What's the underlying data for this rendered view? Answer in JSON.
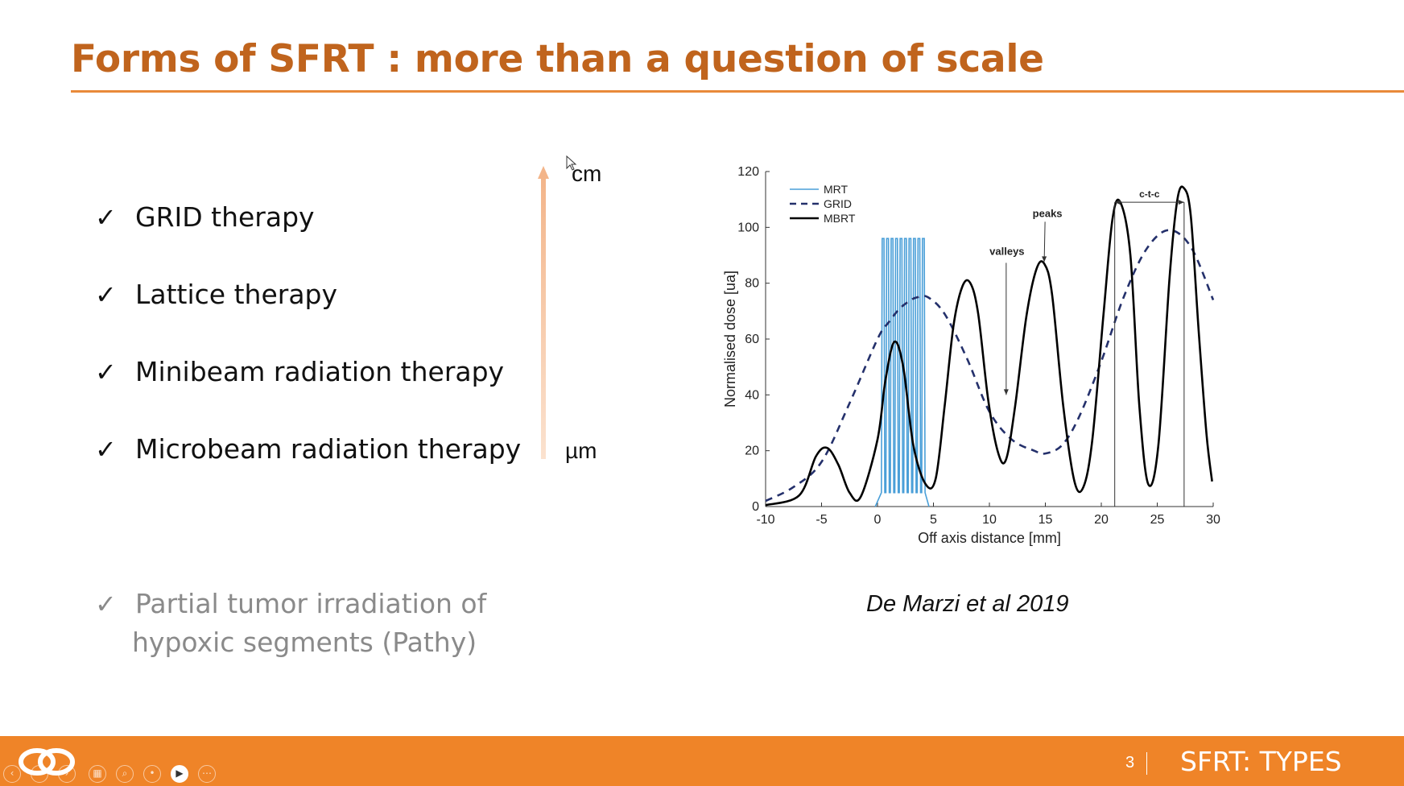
{
  "slide": {
    "title": "Forms of SFRT : more than a question of scale",
    "bullets": [
      {
        "label": "GRID therapy"
      },
      {
        "label": "Lattice therapy"
      },
      {
        "label": "Minibeam radiation therapy"
      },
      {
        "label": "Microbeam radiation therapy"
      }
    ],
    "extra_bullet": {
      "line1": "Partial tumor irradiation of",
      "line2": "hypoxic segments (Pathy)"
    },
    "check_glyph": "✓",
    "scale": {
      "top_label": "cm",
      "bottom_label": "µm"
    },
    "citation": "De Marzi  et al 2019"
  },
  "footer": {
    "page_number": "3",
    "section_title": "SFRT: TYPES",
    "controls": [
      "back-icon",
      "forward-icon",
      "next-icon",
      "slides-icon",
      "zoom-icon",
      "pointer-icon",
      "video-icon",
      "more-icon"
    ]
  },
  "colors": {
    "title": "#c0641d",
    "accent": "#ef8428",
    "mrt": "#4a9fd8",
    "grid": "#24306b",
    "mbrt": "#000000"
  },
  "chart_data": {
    "type": "line",
    "xlabel": "Off axis distance [mm]",
    "ylabel": "Normalised dose [ua]",
    "xlim": [
      -10,
      30
    ],
    "ylim": [
      0,
      120
    ],
    "xticks": [
      -10,
      -5,
      0,
      5,
      10,
      15,
      20,
      25,
      30
    ],
    "yticks": [
      0,
      20,
      40,
      60,
      80,
      100,
      120
    ],
    "grid": false,
    "legend": "top-left",
    "series": [
      {
        "name": "MRT",
        "style": "solid-thin",
        "peaks_x": [
          0.5,
          0.9,
          1.3,
          1.7,
          2.1,
          2.5,
          2.9,
          3.3,
          3.7,
          4.1
        ],
        "peak_value": 96,
        "valley_value": 5
      },
      {
        "name": "GRID",
        "style": "dashed",
        "x": [
          -10,
          -7.5,
          -5,
          -2.5,
          0,
          1,
          2,
          3,
          3.6,
          4.5,
          6,
          8,
          10,
          12,
          14,
          15,
          16.5,
          18,
          20,
          22,
          24,
          26,
          28,
          30
        ],
        "y": [
          2,
          7,
          16,
          37,
          60,
          66,
          71,
          74,
          75,
          75,
          69,
          53,
          34,
          24,
          20,
          19,
          22,
          32,
          52,
          75,
          92,
          99,
          93,
          74
        ]
      },
      {
        "name": "MBRT",
        "style": "solid",
        "x": [
          -10,
          -7,
          -5.5,
          -4.5,
          -3.5,
          -2.5,
          -1.5,
          0,
          0.7,
          1.5,
          2.3,
          3.2,
          4.3,
          5.2,
          6,
          6.8,
          7.6,
          8.3,
          9,
          9.9,
          10.8,
          11.5,
          12.3,
          13.3,
          14.2,
          14.9,
          15.6,
          16.6,
          17.6,
          18.4,
          19.2,
          20.2,
          21,
          21.7,
          22.6,
          23.4,
          24.2,
          25.1,
          26.1,
          26.8,
          27.4,
          28,
          28.7,
          29.4,
          29.9
        ],
        "y": [
          0.5,
          4,
          18,
          21,
          15,
          5,
          3.5,
          24,
          45,
          59,
          50,
          22,
          8,
          10,
          36,
          65,
          79,
          80,
          69,
          38,
          19,
          17,
          36,
          68,
          85,
          87,
          76,
          36,
          9,
          7,
          24,
          69,
          103,
          109,
          90,
          36,
          8,
          22,
          82,
          110,
          114,
          104,
          63,
          26,
          9
        ]
      }
    ],
    "annotations": [
      {
        "text": "peaks",
        "x": 14.9,
        "y": 87
      },
      {
        "text": "valleys",
        "x": 11.5,
        "y": 40
      },
      {
        "text": "c-t-c",
        "x1": 21.2,
        "x2": 27.4,
        "y": 109
      }
    ]
  }
}
